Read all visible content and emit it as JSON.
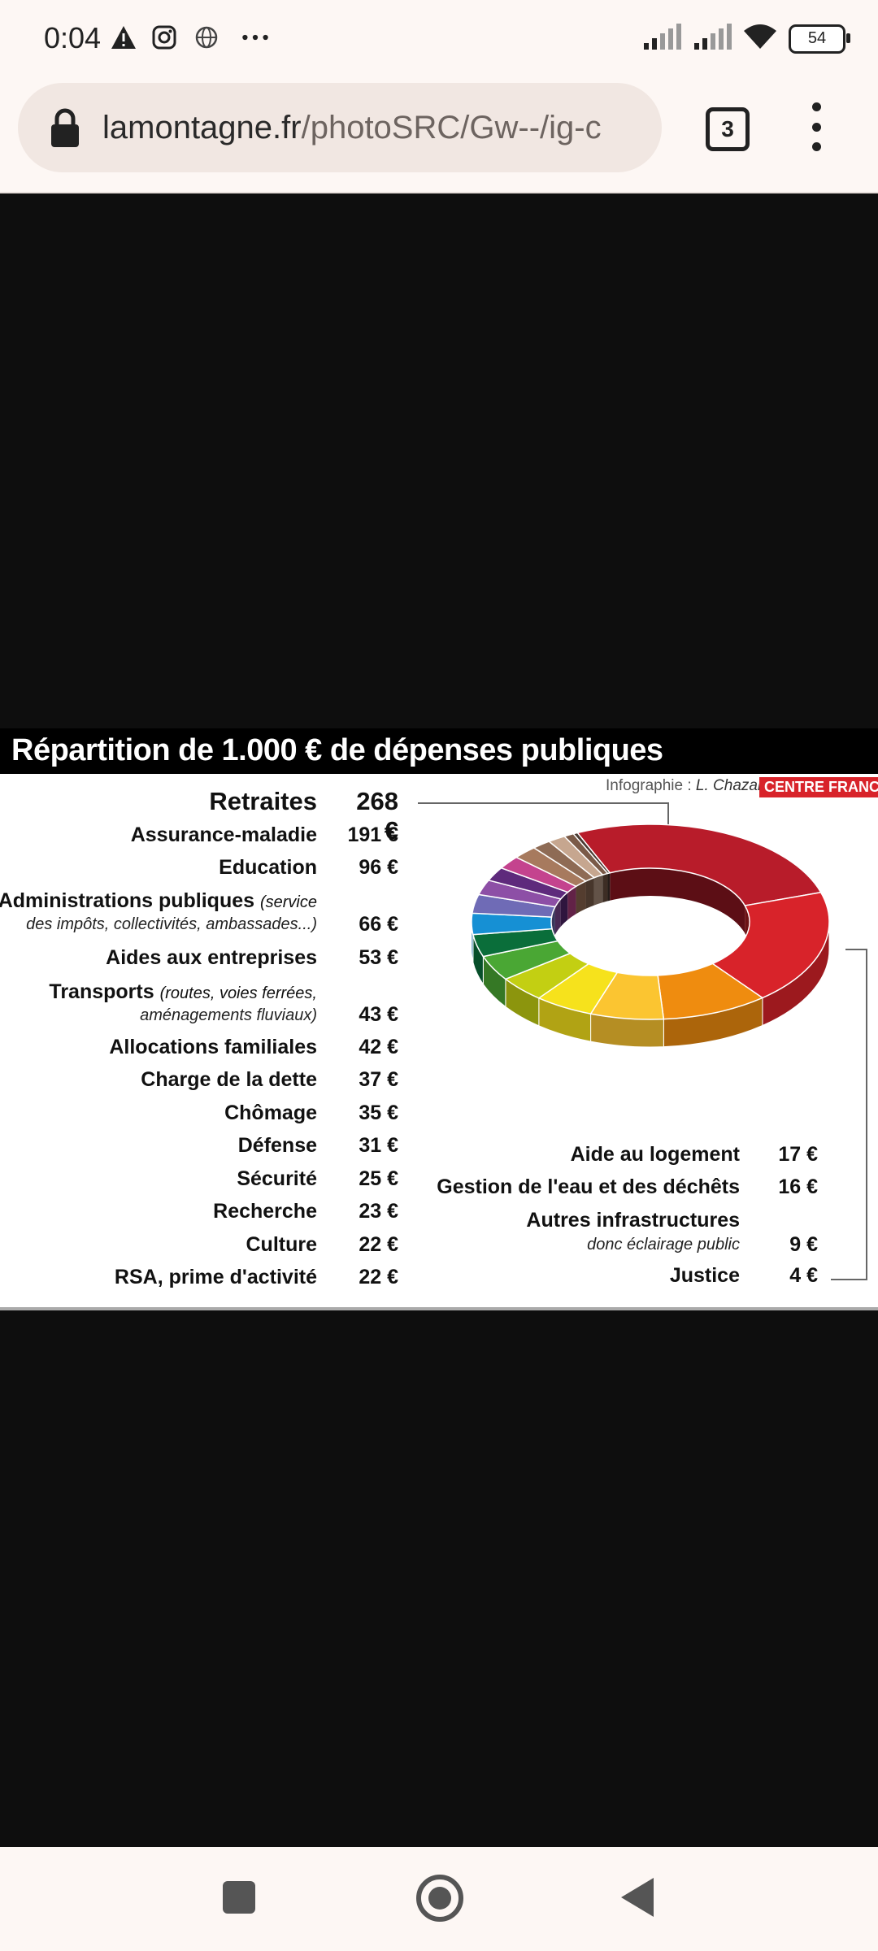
{
  "status_bar": {
    "time": "0:04",
    "battery": "54",
    "icons": [
      "alert-icon",
      "instagram-icon",
      "globe-icon",
      "more-icon",
      "signal-icon",
      "signal-icon",
      "wifi-icon",
      "battery-icon"
    ]
  },
  "browser": {
    "url_host": "lamontagne.fr",
    "url_path": "/photoSRC/Gw--/ig-c",
    "tab_count": "3"
  },
  "infographic": {
    "title": "Répartition de 1.000 € de dépenses publiques",
    "credit_prefix": "Infographie : ",
    "credit_author": "L. Chazal",
    "brand": "CENTRE FRANCE",
    "left_items": [
      {
        "label": "Retraites",
        "value": "268 €"
      },
      {
        "label": "Assurance-maladie",
        "value": "191 €"
      },
      {
        "label": "Education",
        "value": "96 €"
      },
      {
        "label": "Administrations publiques",
        "sub1": "(service",
        "sub2": "des impôts, collectivités, ambassades...)",
        "value": "66 €"
      },
      {
        "label": "Aides aux entreprises",
        "value": "53 €"
      },
      {
        "label": "Transports",
        "sub1": "(routes, voies ferrées,",
        "sub2": "aménagements fluviaux)",
        "value": "43 €"
      },
      {
        "label": "Allocations familiales",
        "value": "42 €"
      },
      {
        "label": "Charge de la dette",
        "value": "37 €"
      },
      {
        "label": "Chômage",
        "value": "35 €"
      },
      {
        "label": "Défense",
        "value": "31 €"
      },
      {
        "label": "Sécurité",
        "value": "25 €"
      },
      {
        "label": "Recherche",
        "value": "23 €"
      },
      {
        "label": "Culture",
        "value": "22 €"
      },
      {
        "label": "RSA, prime d'activité",
        "value": "22 €"
      }
    ],
    "right_items": [
      {
        "label": "Aide au logement",
        "value": "17 €"
      },
      {
        "label": "Gestion de l'eau et des déchêts",
        "value": "16 €"
      },
      {
        "label": "Autres infrastructures",
        "sub": "donc éclairage public",
        "value": "9 €"
      },
      {
        "label": "Justice",
        "value": "4 €"
      }
    ]
  },
  "chart_data": {
    "type": "pie",
    "title": "Répartition de 1.000 € de dépenses publiques",
    "categories": [
      "Retraites",
      "Assurance-maladie",
      "Education",
      "Administrations publiques",
      "Aides aux entreprises",
      "Transports",
      "Allocations familiales",
      "Charge de la dette",
      "Chômage",
      "Défense",
      "Sécurité",
      "Recherche",
      "Culture",
      "RSA, prime d'activité",
      "Aide au logement",
      "Gestion de l'eau et des déchêts",
      "Autres infrastructures",
      "Justice"
    ],
    "values": [
      268,
      191,
      96,
      66,
      53,
      43,
      42,
      37,
      35,
      31,
      25,
      23,
      22,
      22,
      17,
      16,
      9,
      4
    ],
    "colors": [
      "#b81c2a",
      "#d8232a",
      "#ef8c0f",
      "#fbc531",
      "#f6e21c",
      "#c3cf12",
      "#4aa734",
      "#0a6e3a",
      "#1690d4",
      "#6f6bb6",
      "#8d4fa6",
      "#5e2a7c",
      "#c4438e",
      "#a77a5e",
      "#8e6b55",
      "#c6a68f",
      "#7a5a48",
      "#4a3a32"
    ],
    "hole": true
  }
}
